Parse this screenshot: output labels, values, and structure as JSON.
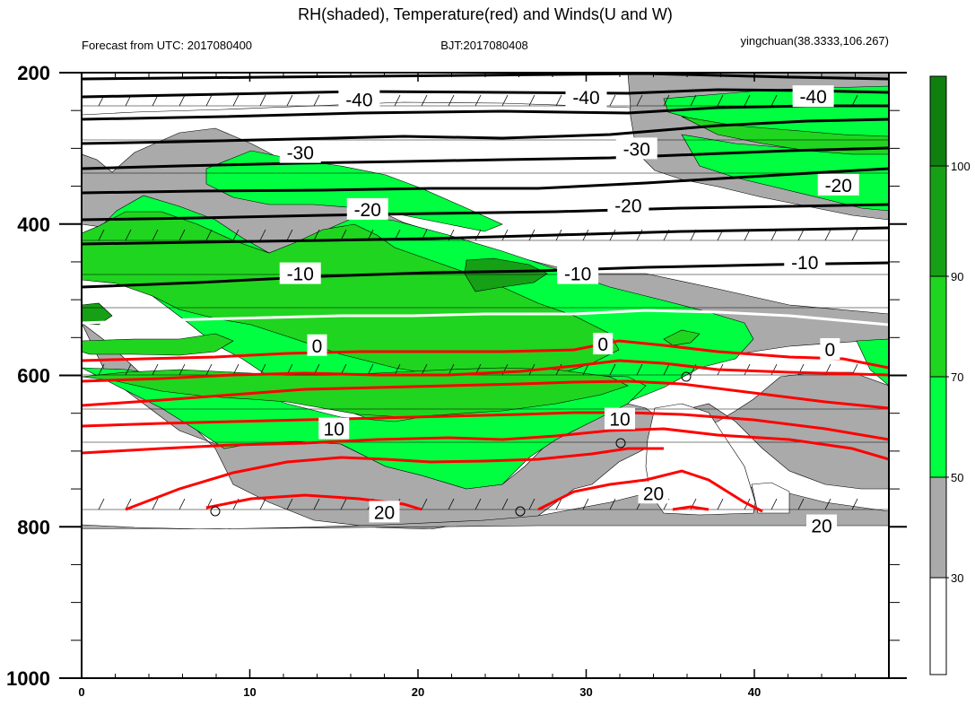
{
  "header": {
    "title": "RH(shaded), Temperature(red) and Winds(U and W)",
    "left": "Forecast from UTC: 2017080400",
    "center": "BJT:2017080408",
    "right": "yingchuan(38.3333,106.267)"
  },
  "colors": {
    "rh_100": "#0f7f0f",
    "rh_90": "#16a016",
    "rh_70": "#1fd51f",
    "rh_50": "#00ff40",
    "rh_30": "#aaaaaa",
    "rh_lt30": "#ffffff",
    "temp_warm": "#ff0000",
    "temp_cold": "#000000",
    "temp_zero": "#ffffff"
  },
  "chart_data": {
    "type": "heatmap",
    "title": "RH(shaded), Temperature(red) and Winds(U and W)",
    "x_ticks": [
      0,
      10,
      20,
      30,
      40
    ],
    "xlim": [
      0,
      48
    ],
    "y_ticks": [
      200,
      400,
      600,
      800,
      1000
    ],
    "ylim": [
      1000,
      200
    ],
    "y_reversed": true,
    "colorbar_levels": [
      30,
      50,
      70,
      90,
      100
    ],
    "colorbar_labels": [
      "30",
      "50",
      "70",
      "90",
      "100"
    ],
    "temperature_labels": [
      {
        "text": "-40",
        "x": 16.5,
        "y": 235,
        "v": -40
      },
      {
        "text": "-40",
        "x": 30.0,
        "y": 232,
        "v": -40
      },
      {
        "text": "-40",
        "x": 43.5,
        "y": 231,
        "v": -40
      },
      {
        "text": "-30",
        "x": 13.0,
        "y": 305,
        "v": -30
      },
      {
        "text": "-30",
        "x": 33.0,
        "y": 300,
        "v": -30
      },
      {
        "text": "-20",
        "x": 17.0,
        "y": 380,
        "v": -20
      },
      {
        "text": "-20",
        "x": 32.5,
        "y": 375,
        "v": -20
      },
      {
        "text": "-20",
        "x": 45.0,
        "y": 348,
        "v": -20
      },
      {
        "text": "-10",
        "x": 13.0,
        "y": 465,
        "v": -10
      },
      {
        "text": "-10",
        "x": 29.5,
        "y": 465,
        "v": -10
      },
      {
        "text": "-10",
        "x": 43.0,
        "y": 450,
        "v": -10
      },
      {
        "text": "0",
        "x": 14.0,
        "y": 560,
        "v": 0
      },
      {
        "text": "0",
        "x": 31.0,
        "y": 558,
        "v": 0
      },
      {
        "text": "0",
        "x": 44.5,
        "y": 565,
        "v": 0
      },
      {
        "text": "10",
        "x": 15.0,
        "y": 670,
        "v": 10
      },
      {
        "text": "10",
        "x": 32.0,
        "y": 657,
        "v": 10
      },
      {
        "text": "20",
        "x": 18.0,
        "y": 780,
        "v": 20
      },
      {
        "text": "20",
        "x": 34.0,
        "y": 755,
        "v": 20
      },
      {
        "text": "20",
        "x": 44.0,
        "y": 798,
        "v": 20
      }
    ]
  }
}
